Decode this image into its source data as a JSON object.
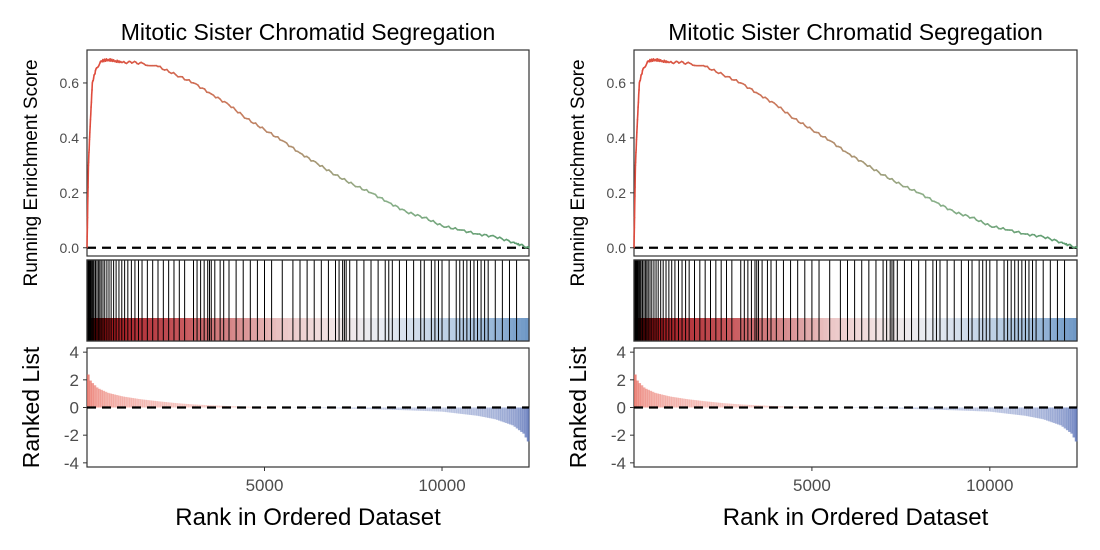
{
  "chart_data": [
    {
      "type": "line",
      "title": "Mitotic Sister Chromatid Segregation",
      "xlabel": "Rank in Ordered Dataset",
      "panels": {
        "enrichment": {
          "ylabel": "Running Enrichment Score",
          "ylim": [
            -0.03,
            0.72
          ],
          "yticks": [
            "0.0",
            "0.2",
            "0.4",
            "0.6"
          ],
          "ytick_values": [
            0.0,
            0.2,
            0.4,
            0.6
          ],
          "series": [
            {
              "x": [
                0,
                40,
                80,
                150,
                250,
                400,
                600,
                800,
                1000,
                1300,
                1600,
                2000,
                2500,
                3000,
                3500,
                4000,
                4500,
                5000,
                5500,
                6000,
                6500,
                7000,
                7500,
                8000,
                8500,
                9000,
                9500,
                10000,
                10500,
                11000,
                11500,
                12000,
                12200,
                12450
              ],
              "values": [
                0.0,
                0.3,
                0.42,
                0.6,
                0.65,
                0.68,
                0.685,
                0.68,
                0.675,
                0.675,
                0.67,
                0.66,
                0.63,
                0.6,
                0.56,
                0.52,
                0.47,
                0.43,
                0.39,
                0.345,
                0.305,
                0.265,
                0.23,
                0.2,
                0.165,
                0.13,
                0.11,
                0.08,
                0.065,
                0.05,
                0.04,
                0.02,
                0.01,
                0.0
              ]
            }
          ],
          "zero_line": true,
          "line_colors": [
            "#e04a3c",
            "#c97a5d",
            "#8bb08a",
            "#5a9b6e"
          ]
        },
        "hits": {
          "hit_positions": [
            10,
            30,
            50,
            70,
            90,
            110,
            140,
            170,
            200,
            240,
            280,
            320,
            360,
            400,
            450,
            500,
            560,
            620,
            680,
            750,
            820,
            900,
            980,
            1060,
            1150,
            1250,
            1350,
            1450,
            1550,
            1700,
            1850,
            2000,
            2150,
            2300,
            2450,
            2600,
            2750,
            3000,
            3100,
            3200,
            3300,
            3400,
            3450,
            3500,
            3600,
            3750,
            3850,
            4000,
            4200,
            4400,
            4600,
            4800,
            5000,
            5200,
            5500,
            5800,
            6000,
            6200,
            6400,
            6600,
            6800,
            7000,
            7100,
            7200,
            7250,
            7300,
            7400,
            7600,
            7800,
            8000,
            8200,
            8400,
            8500,
            8600,
            8800,
            9000,
            9200,
            9400,
            9500,
            9700,
            9800,
            9900,
            10000,
            10200,
            10400,
            10500,
            10600,
            10700,
            10800,
            10900,
            11000,
            11100,
            11200,
            11300,
            11500,
            11700,
            11900,
            12100
          ],
          "gradient_colors": [
            "#8b0000",
            "#b2333a",
            "#c95c60",
            "#d68a8c",
            "#ecc7c7",
            "#f2e4e4",
            "#e8ecf2",
            "#c7d6e8",
            "#a9c4e0",
            "#6f98c6"
          ]
        },
        "ranked": {
          "ylabel": "Ranked List",
          "ylim": [
            -4.3,
            4.3
          ],
          "yticks": [
            "4",
            "2",
            "0",
            "-2",
            "-4"
          ],
          "ytick_values": [
            4,
            2,
            0,
            -2,
            -4
          ],
          "x": [
            0,
            100,
            300,
            600,
            1000,
            1500,
            2000,
            2500,
            3000,
            4000,
            5000,
            6000,
            7000,
            8000,
            9000,
            10000,
            10500,
            11000,
            11500,
            12000,
            12300,
            12450
          ],
          "values": [
            2.6,
            1.9,
            1.4,
            1.05,
            0.8,
            0.6,
            0.45,
            0.32,
            0.22,
            0.1,
            0.02,
            -0.02,
            -0.06,
            -0.12,
            -0.2,
            -0.3,
            -0.45,
            -0.6,
            -0.85,
            -1.3,
            -1.9,
            -2.6
          ],
          "pos_color": "#e86b5f",
          "neg_color": "#5a72b8"
        },
        "xlim": [
          0,
          12450
        ],
        "xticks": [
          "5000",
          "10000"
        ],
        "xtick_values": [
          5000,
          10000
        ]
      }
    },
    {
      "type": "line",
      "title": "Mitotic Sister Chromatid Segregation",
      "xlabel": "Rank in Ordered Dataset",
      "panels": {
        "enrichment": {
          "ylabel": "Running Enrichment Score",
          "ylim": [
            -0.03,
            0.72
          ],
          "yticks": [
            "0.0",
            "0.2",
            "0.4",
            "0.6"
          ],
          "ytick_values": [
            0.0,
            0.2,
            0.4,
            0.6
          ],
          "series": [
            {
              "x": [
                0,
                40,
                80,
                150,
                250,
                400,
                600,
                800,
                1000,
                1300,
                1600,
                2000,
                2500,
                3000,
                3500,
                4000,
                4500,
                5000,
                5500,
                6000,
                6500,
                7000,
                7500,
                8000,
                8500,
                9000,
                9500,
                10000,
                10500,
                11000,
                11500,
                12000,
                12200,
                12450
              ],
              "values": [
                0.0,
                0.3,
                0.42,
                0.6,
                0.65,
                0.68,
                0.685,
                0.68,
                0.675,
                0.675,
                0.67,
                0.66,
                0.63,
                0.6,
                0.56,
                0.52,
                0.47,
                0.43,
                0.39,
                0.345,
                0.305,
                0.265,
                0.23,
                0.2,
                0.165,
                0.13,
                0.11,
                0.08,
                0.065,
                0.05,
                0.04,
                0.02,
                0.01,
                0.0
              ]
            }
          ],
          "zero_line": true,
          "line_colors": [
            "#e04a3c",
            "#c97a5d",
            "#8bb08a",
            "#5a9b6e"
          ]
        },
        "hits": {
          "hit_positions": [
            10,
            30,
            50,
            70,
            90,
            110,
            140,
            170,
            200,
            240,
            280,
            320,
            360,
            400,
            450,
            500,
            560,
            620,
            680,
            750,
            820,
            900,
            980,
            1060,
            1150,
            1250,
            1350,
            1450,
            1550,
            1700,
            1850,
            2000,
            2150,
            2300,
            2450,
            2600,
            2750,
            3000,
            3100,
            3200,
            3300,
            3400,
            3450,
            3500,
            3600,
            3750,
            3850,
            4000,
            4200,
            4400,
            4600,
            4800,
            5000,
            5200,
            5500,
            5800,
            6000,
            6200,
            6400,
            6600,
            6800,
            7000,
            7100,
            7200,
            7250,
            7300,
            7400,
            7600,
            7800,
            8000,
            8200,
            8400,
            8500,
            8600,
            8800,
            9000,
            9200,
            9400,
            9500,
            9700,
            9800,
            9900,
            10000,
            10200,
            10400,
            10500,
            10600,
            10700,
            10800,
            10900,
            11000,
            11100,
            11200,
            11300,
            11500,
            11700,
            11900,
            12100
          ],
          "gradient_colors": [
            "#8b0000",
            "#b2333a",
            "#c95c60",
            "#d68a8c",
            "#ecc7c7",
            "#f2e4e4",
            "#e8ecf2",
            "#c7d6e8",
            "#a9c4e0",
            "#6f98c6"
          ]
        },
        "ranked": {
          "ylabel": "Ranked List",
          "ylim": [
            -4.3,
            4.3
          ],
          "yticks": [
            "4",
            "2",
            "0",
            "-2",
            "-4"
          ],
          "ytick_values": [
            4,
            2,
            0,
            -2,
            -4
          ],
          "x": [
            0,
            100,
            300,
            600,
            1000,
            1500,
            2000,
            2500,
            3000,
            4000,
            5000,
            6000,
            7000,
            8000,
            9000,
            10000,
            10500,
            11000,
            11500,
            12000,
            12300,
            12450
          ],
          "values": [
            2.6,
            1.9,
            1.4,
            1.05,
            0.8,
            0.6,
            0.45,
            0.32,
            0.22,
            0.1,
            0.02,
            -0.02,
            -0.06,
            -0.12,
            -0.2,
            -0.3,
            -0.45,
            -0.6,
            -0.85,
            -1.3,
            -1.9,
            -2.6
          ],
          "pos_color": "#e86b5f",
          "neg_color": "#5a72b8"
        },
        "xlim": [
          0,
          12450
        ],
        "xticks": [
          "5000",
          "10000"
        ],
        "xtick_values": [
          5000,
          10000
        ]
      }
    }
  ]
}
